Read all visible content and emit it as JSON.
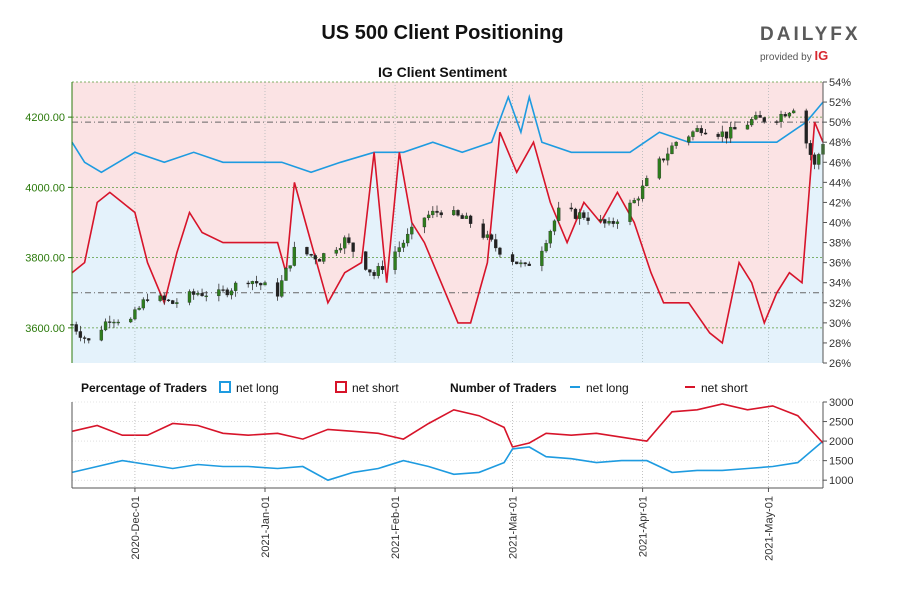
{
  "header": {
    "title": "US 500 Client Positioning",
    "subtitle": "IG Client Sentiment",
    "brand_name": "DAILYFX",
    "brand_sub": "provided by",
    "brand_ig": "IG"
  },
  "legend": {
    "pct_heading": "Percentage of Traders",
    "pct_long": "net long",
    "pct_short": "net short",
    "num_heading": "Number of Traders",
    "num_long": "net long",
    "num_short": "net short"
  },
  "colors": {
    "long": "#1e9be0",
    "short": "#d7142a",
    "long_fill": "#e4f2fb",
    "short_fill": "#fbe3e4",
    "price_axis": "#2b7a0b"
  },
  "chart_data": {
    "type": "line",
    "title": "US 500 Client Positioning",
    "subtitle": "IG Client Sentiment",
    "x_ticks": [
      "2020-Dec-01",
      "2021-Jan-01",
      "2021-Feb-01",
      "2021-Mar-01",
      "2021-Apr-01",
      "2021-May-01"
    ],
    "price_axis": {
      "ticks": [
        "3600.00",
        "3800.00",
        "4000.00",
        "4200.00"
      ],
      "ylim": [
        3500,
        4300
      ]
    },
    "percent_axis": {
      "ticks": [
        "26%",
        "28%",
        "30%",
        "32%",
        "34%",
        "36%",
        "38%",
        "40%",
        "42%",
        "44%",
        "46%",
        "48%",
        "50%",
        "52%",
        "54%"
      ],
      "ylim": [
        26,
        54
      ]
    },
    "count_axis": {
      "ticks": [
        "1000",
        "1500",
        "2000",
        "2500",
        "3000"
      ],
      "ylim": [
        800,
        3000
      ]
    },
    "date_range": [
      "2020-11-16",
      "2021-05-14"
    ],
    "price_close": [
      {
        "date": "2020-11-16",
        "value": 3610
      },
      {
        "date": "2020-11-20",
        "value": 3560
      },
      {
        "date": "2020-11-25",
        "value": 3630
      },
      {
        "date": "2020-11-30",
        "value": 3620
      },
      {
        "date": "2020-12-04",
        "value": 3690
      },
      {
        "date": "2020-12-10",
        "value": 3670
      },
      {
        "date": "2020-12-16",
        "value": 3700
      },
      {
        "date": "2020-12-21",
        "value": 3695
      },
      {
        "date": "2020-12-28",
        "value": 3740
      },
      {
        "date": "2021-01-04",
        "value": 3700
      },
      {
        "date": "2021-01-08",
        "value": 3820
      },
      {
        "date": "2021-01-14",
        "value": 3800
      },
      {
        "date": "2021-01-20",
        "value": 3850
      },
      {
        "date": "2021-01-27",
        "value": 3750
      },
      {
        "date": "2021-02-02",
        "value": 3830
      },
      {
        "date": "2021-02-08",
        "value": 3915
      },
      {
        "date": "2021-02-12",
        "value": 3935
      },
      {
        "date": "2021-02-19",
        "value": 3900
      },
      {
        "date": "2021-02-25",
        "value": 3830
      },
      {
        "date": "2021-03-04",
        "value": 3770
      },
      {
        "date": "2021-03-08",
        "value": 3830
      },
      {
        "date": "2021-03-12",
        "value": 3930
      },
      {
        "date": "2021-03-18",
        "value": 3920
      },
      {
        "date": "2021-03-24",
        "value": 3890
      },
      {
        "date": "2021-03-30",
        "value": 3960
      },
      {
        "date": "2021-04-05",
        "value": 4070
      },
      {
        "date": "2021-04-09",
        "value": 4130
      },
      {
        "date": "2021-04-15",
        "value": 4170
      },
      {
        "date": "2021-04-21",
        "value": 4150
      },
      {
        "date": "2021-04-27",
        "value": 4190
      },
      {
        "date": "2021-05-03",
        "value": 4200
      },
      {
        "date": "2021-05-07",
        "value": 4230
      },
      {
        "date": "2021-05-12",
        "value": 4060
      },
      {
        "date": "2021-05-14",
        "value": 4130
      }
    ],
    "reference_lines": [
      {
        "axis": "percent",
        "value": 50,
        "label": ""
      },
      {
        "axis": "percent",
        "value": 33,
        "label": ""
      }
    ],
    "series": [
      {
        "name": "net long",
        "axis": "percent",
        "values": [
          {
            "date": "2020-11-16",
            "value": 48
          },
          {
            "date": "2020-11-19",
            "value": 46
          },
          {
            "date": "2020-11-23",
            "value": 45
          },
          {
            "date": "2020-11-27",
            "value": 46
          },
          {
            "date": "2020-12-01",
            "value": 47
          },
          {
            "date": "2020-12-08",
            "value": 46
          },
          {
            "date": "2020-12-15",
            "value": 47
          },
          {
            "date": "2020-12-22",
            "value": 46
          },
          {
            "date": "2021-01-05",
            "value": 46
          },
          {
            "date": "2021-01-12",
            "value": 45
          },
          {
            "date": "2021-01-19",
            "value": 46
          },
          {
            "date": "2021-01-27",
            "value": 47
          },
          {
            "date": "2021-02-03",
            "value": 47
          },
          {
            "date": "2021-02-10",
            "value": 48
          },
          {
            "date": "2021-02-17",
            "value": 47
          },
          {
            "date": "2021-02-24",
            "value": 48
          },
          {
            "date": "2021-02-28",
            "value": 52.5
          },
          {
            "date": "2021-03-03",
            "value": 49
          },
          {
            "date": "2021-03-05",
            "value": 52.5
          },
          {
            "date": "2021-03-08",
            "value": 48
          },
          {
            "date": "2021-03-15",
            "value": 47
          },
          {
            "date": "2021-03-22",
            "value": 47
          },
          {
            "date": "2021-03-29",
            "value": 47
          },
          {
            "date": "2021-04-05",
            "value": 49
          },
          {
            "date": "2021-04-12",
            "value": 48
          },
          {
            "date": "2021-04-19",
            "value": 48
          },
          {
            "date": "2021-04-26",
            "value": 48
          },
          {
            "date": "2021-05-03",
            "value": 48
          },
          {
            "date": "2021-05-10",
            "value": 50
          },
          {
            "date": "2021-05-14",
            "value": 52
          }
        ]
      },
      {
        "name": "net short",
        "axis": "percent",
        "values": [
          {
            "date": "2020-11-16",
            "value": 35
          },
          {
            "date": "2020-11-19",
            "value": 36
          },
          {
            "date": "2020-11-22",
            "value": 42
          },
          {
            "date": "2020-11-25",
            "value": 43
          },
          {
            "date": "2020-11-28",
            "value": 42
          },
          {
            "date": "2020-12-01",
            "value": 41
          },
          {
            "date": "2020-12-04",
            "value": 36
          },
          {
            "date": "2020-12-08",
            "value": 32
          },
          {
            "date": "2020-12-11",
            "value": 37
          },
          {
            "date": "2020-12-14",
            "value": 41
          },
          {
            "date": "2020-12-17",
            "value": 39
          },
          {
            "date": "2020-12-22",
            "value": 38
          },
          {
            "date": "2020-12-29",
            "value": 38
          },
          {
            "date": "2021-01-04",
            "value": 38
          },
          {
            "date": "2021-01-06",
            "value": 35
          },
          {
            "date": "2021-01-08",
            "value": 44
          },
          {
            "date": "2021-01-12",
            "value": 38
          },
          {
            "date": "2021-01-16",
            "value": 32
          },
          {
            "date": "2021-01-20",
            "value": 35
          },
          {
            "date": "2021-01-24",
            "value": 36
          },
          {
            "date": "2021-01-27",
            "value": 47
          },
          {
            "date": "2021-01-30",
            "value": 34
          },
          {
            "date": "2021-02-02",
            "value": 47
          },
          {
            "date": "2021-02-05",
            "value": 40
          },
          {
            "date": "2021-02-08",
            "value": 38
          },
          {
            "date": "2021-02-12",
            "value": 34
          },
          {
            "date": "2021-02-16",
            "value": 30
          },
          {
            "date": "2021-02-19",
            "value": 30
          },
          {
            "date": "2021-02-23",
            "value": 36
          },
          {
            "date": "2021-02-26",
            "value": 49
          },
          {
            "date": "2021-03-02",
            "value": 45
          },
          {
            "date": "2021-03-06",
            "value": 48
          },
          {
            "date": "2021-03-10",
            "value": 42
          },
          {
            "date": "2021-03-14",
            "value": 38
          },
          {
            "date": "2021-03-18",
            "value": 42
          },
          {
            "date": "2021-03-22",
            "value": 40
          },
          {
            "date": "2021-03-26",
            "value": 43
          },
          {
            "date": "2021-03-30",
            "value": 40
          },
          {
            "date": "2021-04-03",
            "value": 35
          },
          {
            "date": "2021-04-06",
            "value": 32
          },
          {
            "date": "2021-04-12",
            "value": 32
          },
          {
            "date": "2021-04-17",
            "value": 29
          },
          {
            "date": "2021-04-20",
            "value": 28
          },
          {
            "date": "2021-04-24",
            "value": 36
          },
          {
            "date": "2021-04-27",
            "value": 34
          },
          {
            "date": "2021-04-30",
            "value": 30
          },
          {
            "date": "2021-05-03",
            "value": 33
          },
          {
            "date": "2021-05-06",
            "value": 35
          },
          {
            "date": "2021-05-09",
            "value": 34
          },
          {
            "date": "2021-05-12",
            "value": 50
          },
          {
            "date": "2021-05-14",
            "value": 48
          }
        ]
      },
      {
        "name": "net long",
        "axis": "count",
        "values": [
          {
            "date": "2020-11-16",
            "value": 1200
          },
          {
            "date": "2020-11-22",
            "value": 1350
          },
          {
            "date": "2020-11-28",
            "value": 1500
          },
          {
            "date": "2020-12-04",
            "value": 1400
          },
          {
            "date": "2020-12-10",
            "value": 1300
          },
          {
            "date": "2020-12-16",
            "value": 1400
          },
          {
            "date": "2020-12-22",
            "value": 1350
          },
          {
            "date": "2020-12-28",
            "value": 1350
          },
          {
            "date": "2021-01-04",
            "value": 1300
          },
          {
            "date": "2021-01-10",
            "value": 1350
          },
          {
            "date": "2021-01-16",
            "value": 1000
          },
          {
            "date": "2021-01-22",
            "value": 1200
          },
          {
            "date": "2021-01-28",
            "value": 1300
          },
          {
            "date": "2021-02-03",
            "value": 1500
          },
          {
            "date": "2021-02-09",
            "value": 1350
          },
          {
            "date": "2021-02-15",
            "value": 1150
          },
          {
            "date": "2021-02-21",
            "value": 1200
          },
          {
            "date": "2021-02-27",
            "value": 1450
          },
          {
            "date": "2021-03-01",
            "value": 1800
          },
          {
            "date": "2021-03-05",
            "value": 1850
          },
          {
            "date": "2021-03-09",
            "value": 1600
          },
          {
            "date": "2021-03-15",
            "value": 1550
          },
          {
            "date": "2021-03-21",
            "value": 1450
          },
          {
            "date": "2021-03-27",
            "value": 1500
          },
          {
            "date": "2021-04-02",
            "value": 1500
          },
          {
            "date": "2021-04-08",
            "value": 1200
          },
          {
            "date": "2021-04-14",
            "value": 1250
          },
          {
            "date": "2021-04-20",
            "value": 1250
          },
          {
            "date": "2021-04-26",
            "value": 1300
          },
          {
            "date": "2021-05-02",
            "value": 1350
          },
          {
            "date": "2021-05-08",
            "value": 1450
          },
          {
            "date": "2021-05-14",
            "value": 2000
          }
        ]
      },
      {
        "name": "net short",
        "axis": "count",
        "values": [
          {
            "date": "2020-11-16",
            "value": 2250
          },
          {
            "date": "2020-11-22",
            "value": 2400
          },
          {
            "date": "2020-11-28",
            "value": 2150
          },
          {
            "date": "2020-12-04",
            "value": 2150
          },
          {
            "date": "2020-12-10",
            "value": 2450
          },
          {
            "date": "2020-12-16",
            "value": 2400
          },
          {
            "date": "2020-12-22",
            "value": 2200
          },
          {
            "date": "2020-12-28",
            "value": 2150
          },
          {
            "date": "2021-01-04",
            "value": 2200
          },
          {
            "date": "2021-01-10",
            "value": 2050
          },
          {
            "date": "2021-01-16",
            "value": 2300
          },
          {
            "date": "2021-01-22",
            "value": 2250
          },
          {
            "date": "2021-01-28",
            "value": 2200
          },
          {
            "date": "2021-02-03",
            "value": 2050
          },
          {
            "date": "2021-02-09",
            "value": 2450
          },
          {
            "date": "2021-02-15",
            "value": 2800
          },
          {
            "date": "2021-02-21",
            "value": 2650
          },
          {
            "date": "2021-02-27",
            "value": 2350
          },
          {
            "date": "2021-03-01",
            "value": 1850
          },
          {
            "date": "2021-03-05",
            "value": 1950
          },
          {
            "date": "2021-03-09",
            "value": 2200
          },
          {
            "date": "2021-03-15",
            "value": 2150
          },
          {
            "date": "2021-03-21",
            "value": 2200
          },
          {
            "date": "2021-03-27",
            "value": 2100
          },
          {
            "date": "2021-04-02",
            "value": 2000
          },
          {
            "date": "2021-04-08",
            "value": 2750
          },
          {
            "date": "2021-04-14",
            "value": 2800
          },
          {
            "date": "2021-04-20",
            "value": 2950
          },
          {
            "date": "2021-04-26",
            "value": 2800
          },
          {
            "date": "2021-05-02",
            "value": 2900
          },
          {
            "date": "2021-05-08",
            "value": 2650
          },
          {
            "date": "2021-05-14",
            "value": 1950
          }
        ]
      }
    ]
  }
}
